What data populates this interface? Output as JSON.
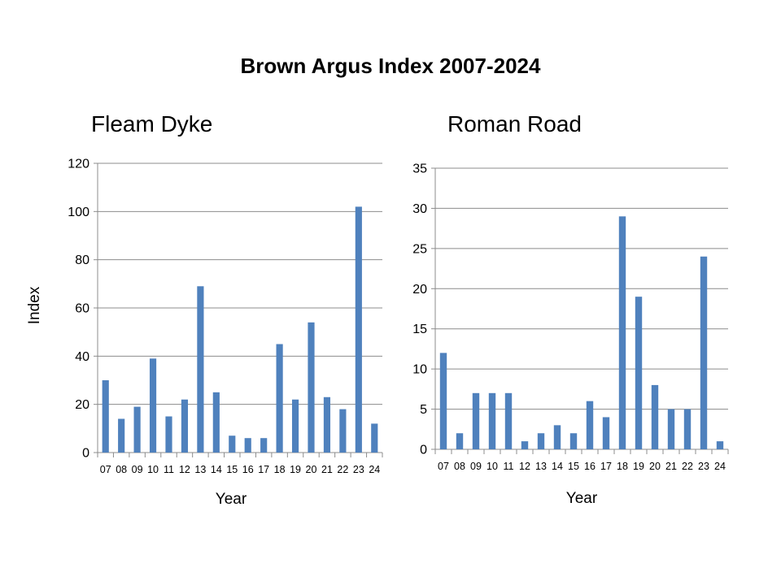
{
  "title": "Brown Argus Index 2007-2024",
  "colors": {
    "bar": "#4f81bd",
    "grid": "#8c8c8c"
  },
  "chart_data": [
    {
      "type": "bar",
      "title": "Fleam Dyke",
      "xlabel": "Year",
      "ylabel": "Index",
      "ylim": [
        0,
        120
      ],
      "yticks": [
        0,
        20,
        40,
        60,
        80,
        100,
        120
      ],
      "grid": true,
      "categories": [
        "07",
        "08",
        "09",
        "10",
        "11",
        "12",
        "13",
        "14",
        "15",
        "16",
        "17",
        "18",
        "19",
        "20",
        "21",
        "22",
        "23",
        "24"
      ],
      "values": [
        30,
        14,
        19,
        39,
        15,
        22,
        69,
        25,
        7,
        6,
        6,
        45,
        22,
        54,
        23,
        18,
        102,
        12
      ]
    },
    {
      "type": "bar",
      "title": "Roman Road",
      "xlabel": "Year",
      "ylabel": "",
      "ylim": [
        0,
        35
      ],
      "yticks": [
        0,
        5,
        10,
        15,
        20,
        25,
        30,
        35
      ],
      "grid": true,
      "categories": [
        "07",
        "08",
        "09",
        "10",
        "11",
        "12",
        "13",
        "14",
        "15",
        "16",
        "17",
        "18",
        "19",
        "20",
        "21",
        "22",
        "23",
        "24"
      ],
      "values": [
        12,
        2,
        7,
        7,
        7,
        1,
        2,
        3,
        2,
        6,
        4,
        29,
        19,
        8,
        5,
        5,
        24,
        1
      ]
    }
  ]
}
